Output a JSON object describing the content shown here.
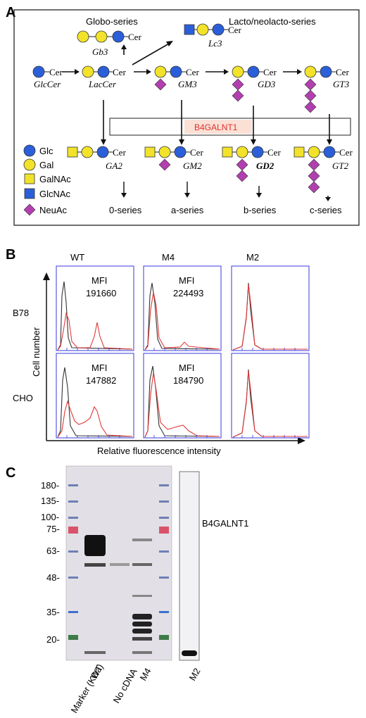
{
  "panel_a": {
    "letter": "A",
    "globo_series": "Globo-series",
    "lacto_series": "Lacto/neolacto-series",
    "cer": "Cer",
    "lipids": {
      "gb3": "Gb3",
      "lc3": "Lc3",
      "glccer": "GlcCer",
      "laccer": "LacCer",
      "gm3": "GM3",
      "gd3": "GD3",
      "gt3": "GT3",
      "ga2": "GA2",
      "gm2": "GM2",
      "gd2": "GD2",
      "gt2": "GT2"
    },
    "enzyme": "B4GALNT1",
    "legend": [
      "Glc",
      "Gal",
      "GalNAc",
      "GlcNAc",
      "NeuAc"
    ],
    "series": [
      "0-series",
      "a-series",
      "b-series",
      "c-series"
    ],
    "colors": {
      "glc": "#2b5fd9",
      "gal": "#f2e32a",
      "galnac": "#f2e32a",
      "glcnac": "#2b5fd9",
      "neuac": "#b23fb0",
      "enzyme_bg": "#fbe0d6",
      "enzyme_text": "#e0302a"
    }
  },
  "panel_b": {
    "letter": "B",
    "columns": [
      "WT",
      "M4",
      "M2"
    ],
    "rows": [
      "B78",
      "CHO"
    ],
    "mfi_label": "MFI",
    "mfi": {
      "b78_wt": "191660",
      "b78_m4": "224493",
      "cho_wt": "147882",
      "cho_m4": "184790"
    },
    "y_label": "Cell number",
    "x_label": "Relative fluorescence intensity",
    "colors": {
      "control": "#333333",
      "stain": "#e03a3a",
      "frame": "#3a3adf"
    }
  },
  "panel_c": {
    "letter": "C",
    "markers": [
      "180-",
      "135-",
      "100-",
      "75-",
      "63-",
      "48-",
      "35-",
      "20-"
    ],
    "band_label": "B4GALNT1",
    "lanes": [
      "Marker (KDa)",
      "WT",
      "No cDNA",
      "M4"
    ],
    "lane_m2": "M2"
  }
}
